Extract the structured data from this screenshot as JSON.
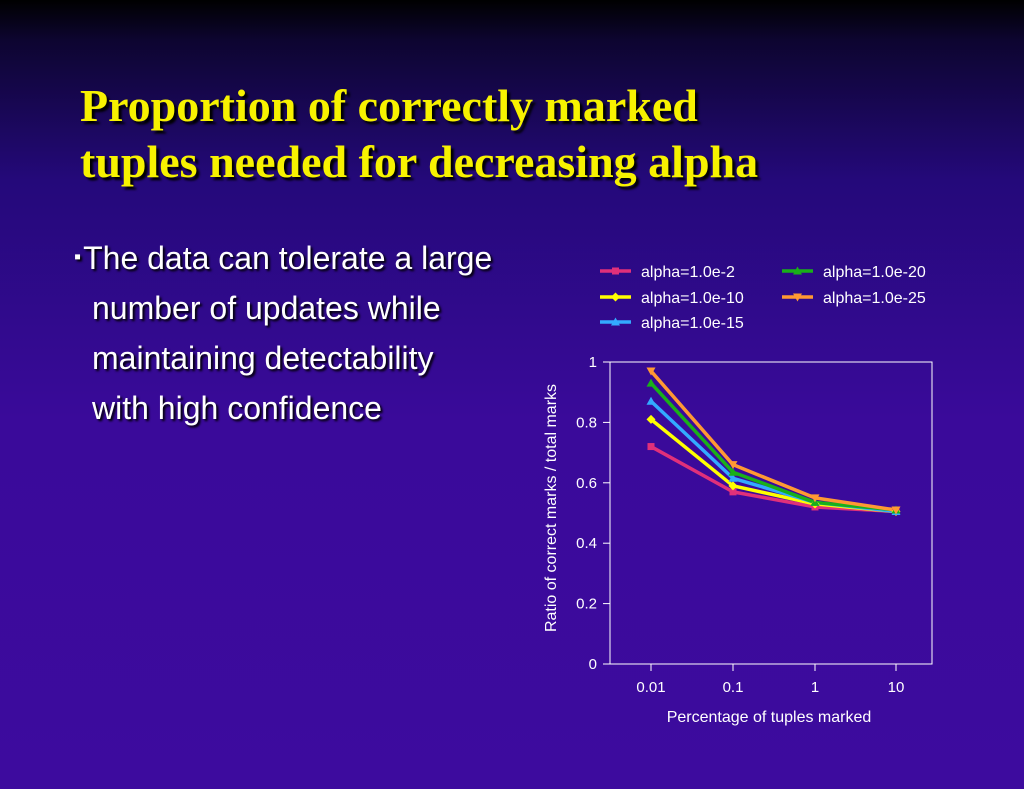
{
  "slide": {
    "title_line1": "Proportion of correctly marked",
    "title_line2": "tuples needed for decreasing alpha",
    "bullet_marker": "▪",
    "bullet_text": "The data can tolerate a large number of updates while maintaining detectability with high confidence"
  },
  "chart_data": {
    "type": "line",
    "x": [
      "0.01",
      "0.1",
      "1",
      "10"
    ],
    "xlabel": "Percentage of tuples marked",
    "ylabel": "Ratio of correct marks / total marks",
    "ylim": [
      0,
      1
    ],
    "yticks": [
      "0",
      "0.2",
      "0.4",
      "0.6",
      "0.8",
      "1"
    ],
    "grid": false,
    "legend_position": "top",
    "series": [
      {
        "name": "alpha=1.0e-2",
        "color": "#e0307a",
        "marker": "square",
        "values": [
          0.72,
          0.57,
          0.52,
          0.505
        ]
      },
      {
        "name": "alpha=1.0e-10",
        "color": "#ffff00",
        "marker": "diamond",
        "values": [
          0.81,
          0.59,
          0.53,
          0.505
        ]
      },
      {
        "name": "alpha=1.0e-15",
        "color": "#33aaff",
        "marker": "triangle",
        "values": [
          0.87,
          0.615,
          0.535,
          0.505
        ]
      },
      {
        "name": "alpha=1.0e-20",
        "color": "#19b019",
        "marker": "triangle",
        "values": [
          0.93,
          0.635,
          0.535,
          0.51
        ]
      },
      {
        "name": "alpha=1.0e-25",
        "color": "#ff9933",
        "marker": "triangle-down",
        "values": [
          0.97,
          0.66,
          0.55,
          0.51
        ]
      }
    ]
  }
}
